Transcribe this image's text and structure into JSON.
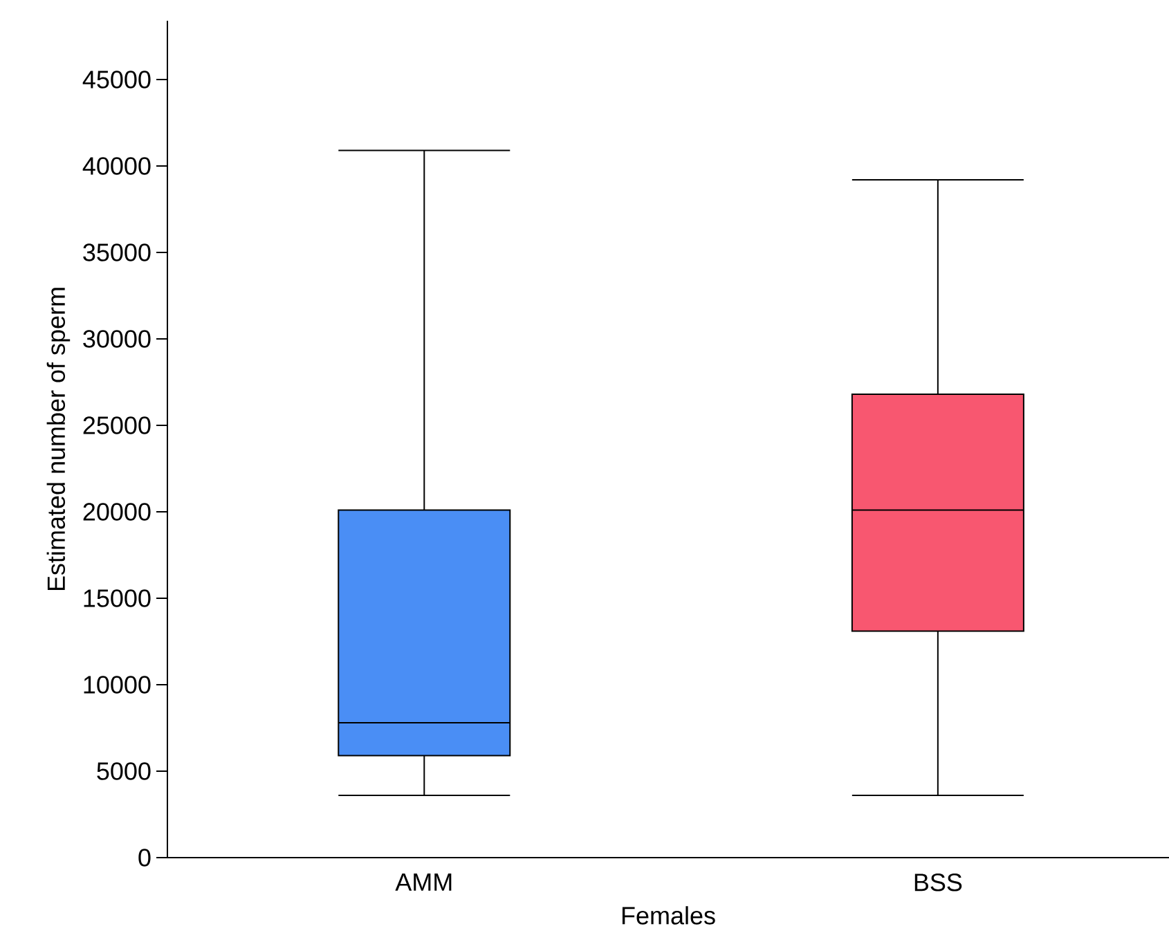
{
  "chart_data": {
    "type": "box",
    "xlabel": "Females",
    "ylabel": "Estimated number of sperm",
    "categories": [
      "AMM",
      "BSS"
    ],
    "boxes": [
      {
        "low": 3600,
        "q1": 5900,
        "median": 7800,
        "q3": 20100,
        "high": 40900
      },
      {
        "low": 3600,
        "q1": 13100,
        "median": 20100,
        "q3": 26800,
        "high": 39200
      }
    ],
    "colors": [
      "#4a8ef5",
      "#f85770"
    ],
    "ylim": [
      0,
      48400
    ],
    "yticks": [
      0,
      5000,
      10000,
      15000,
      20000,
      25000,
      30000,
      35000,
      40000,
      45000
    ],
    "grid": false
  }
}
